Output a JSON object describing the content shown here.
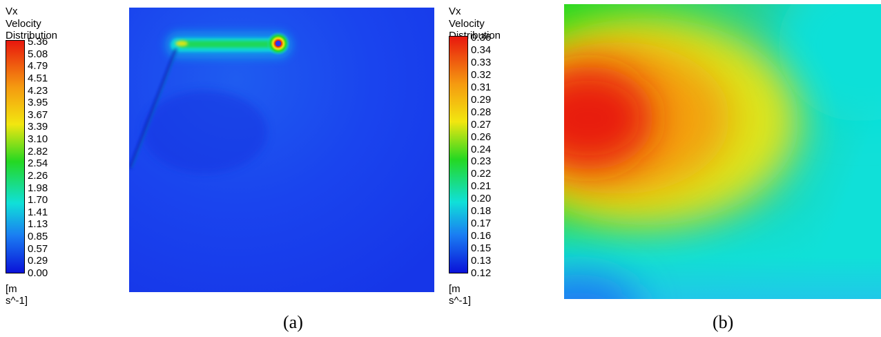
{
  "panel_a": {
    "legend": {
      "variable": "Vx",
      "title": "Velocity Distribution",
      "unit": "[m s^-1]",
      "ticks": [
        "5.36",
        "5.08",
        "4.79",
        "4.51",
        "4.23",
        "3.95",
        "3.67",
        "3.39",
        "3.10",
        "2.82",
        "2.54",
        "2.26",
        "1.98",
        "1.70",
        "1.41",
        "1.13",
        "0.85",
        "0.57",
        "0.29",
        "0.00"
      ]
    },
    "caption": "(a)"
  },
  "panel_b": {
    "legend": {
      "variable": "Vx",
      "title": "Velocity Distribution",
      "unit": "[m s^-1]",
      "ticks": [
        "0.36",
        "0.34",
        "0.33",
        "0.32",
        "0.31",
        "0.29",
        "0.28",
        "0.27",
        "0.26",
        "0.24",
        "0.23",
        "0.22",
        "0.21",
        "0.20",
        "0.18",
        "0.17",
        "0.16",
        "0.15",
        "0.13",
        "0.12"
      ]
    },
    "caption": "(b)"
  },
  "colors": {
    "red": "#e8170e",
    "orange": "#f59a10",
    "yellow": "#f2e610",
    "green": "#25d822",
    "cyan": "#10e0d8",
    "blue": "#1a44ee",
    "navy": "#0a12d8"
  }
}
